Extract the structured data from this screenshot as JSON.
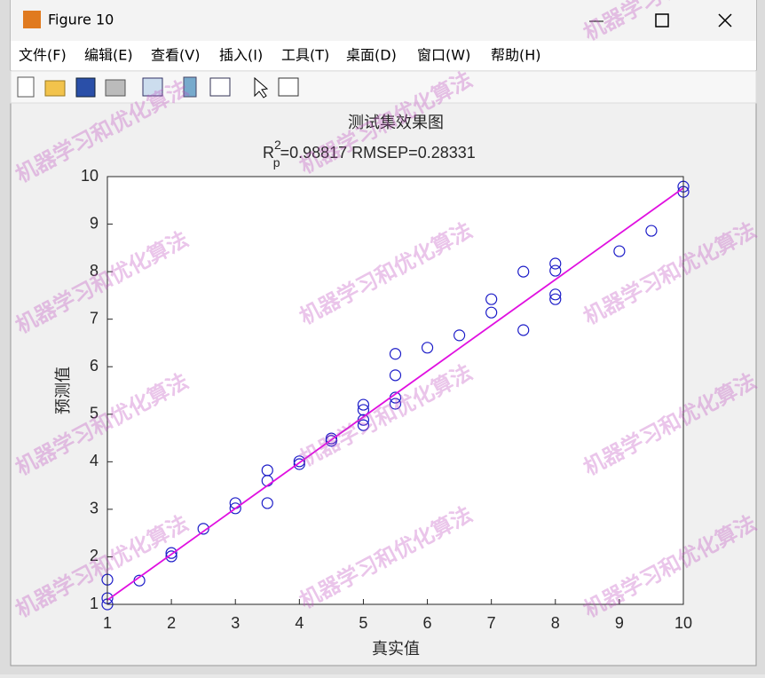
{
  "window_title": "Figure 10",
  "menu": [
    "文件(F)",
    "编辑(E)",
    "查看(V)",
    "插入(I)",
    "工具(T)",
    "桌面(D)",
    "窗口(W)",
    "帮助(H)"
  ],
  "watermark": "机器学习和优化算法",
  "chart_data": {
    "type": "scatter",
    "title": "测试集效果图",
    "subtitle": {
      "base": "R",
      "sup": "2",
      "sub": "p",
      "rest": "=0.98817  RMSEP=0.28331"
    },
    "x_label": "真实值",
    "y_label": "预测值",
    "x": [
      1,
      1,
      1,
      1.5,
      2,
      2,
      2.5,
      3,
      3,
      3.5,
      3.5,
      3.5,
      4,
      4,
      4.5,
      4.5,
      5,
      5,
      5,
      5,
      5.5,
      5.5,
      5.5,
      5.5,
      6,
      6.5,
      7,
      7,
      7.5,
      7.5,
      8,
      8,
      8,
      8,
      9,
      9.5,
      10,
      10
    ],
    "values": [
      1.52,
      1.13,
      1.0,
      1.5,
      2.08,
      2.01,
      2.59,
      3.13,
      3.02,
      3.82,
      3.6,
      3.13,
      4.01,
      3.95,
      4.49,
      4.44,
      5.2,
      5.09,
      4.88,
      4.77,
      6.27,
      5.82,
      5.35,
      5.22,
      6.4,
      6.66,
      7.42,
      7.14,
      8.0,
      6.77,
      8.17,
      8.02,
      7.52,
      7.42,
      8.43,
      8.86,
      9.79,
      9.68
    ],
    "color": "#1c1cc8",
    "fit": {
      "x": [
        1,
        10
      ],
      "values": [
        1.09,
        9.76
      ],
      "color": "#e010e0"
    },
    "xlim": [
      1,
      10
    ],
    "ylim": [
      1,
      10
    ],
    "xticks": [
      1,
      2,
      3,
      4,
      5,
      6,
      7,
      8,
      9,
      10
    ],
    "yticks": [
      1,
      2,
      3,
      4,
      5,
      6,
      7,
      8,
      9,
      10
    ]
  }
}
